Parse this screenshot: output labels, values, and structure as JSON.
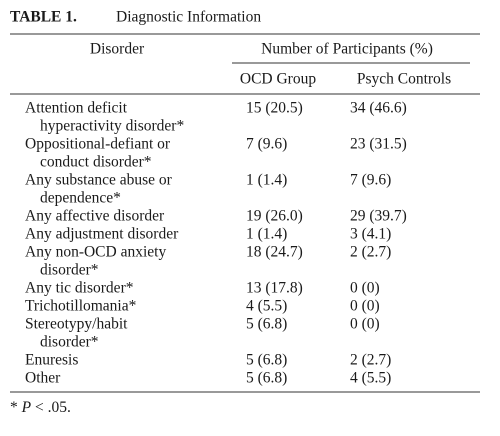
{
  "table": {
    "label": "TABLE 1.",
    "title": "Diagnostic Information",
    "header": {
      "disorder": "Disorder",
      "group": "Number of Participants (%)",
      "columns": [
        "OCD Group",
        "Psych Controls"
      ]
    },
    "rows": [
      {
        "disorder": [
          "Attention deficit",
          "hyperactivity disorder*"
        ],
        "cells": [
          "15 (20.5)",
          "34 (46.6)"
        ]
      },
      {
        "disorder": [
          "Oppositional-defiant or",
          "conduct disorder*"
        ],
        "cells": [
          "7 (9.6)",
          "23 (31.5)"
        ]
      },
      {
        "disorder": [
          "Any substance abuse or",
          "dependence*"
        ],
        "cells": [
          "1 (1.4)",
          "7 (9.6)"
        ]
      },
      {
        "disorder": [
          "Any affective disorder"
        ],
        "cells": [
          "19 (26.0)",
          "29 (39.7)"
        ]
      },
      {
        "disorder": [
          "Any adjustment disorder"
        ],
        "cells": [
          "1 (1.4)",
          "3 (4.1)"
        ]
      },
      {
        "disorder": [
          "Any non-OCD anxiety",
          "disorder*"
        ],
        "cells": [
          "18 (24.7)",
          "2 (2.7)"
        ]
      },
      {
        "disorder": [
          "Any tic disorder*"
        ],
        "cells": [
          "13 (17.8)",
          "0 (0)"
        ]
      },
      {
        "disorder": [
          "Trichotillomania*"
        ],
        "cells": [
          "4 (5.5)",
          "0 (0)"
        ]
      },
      {
        "disorder": [
          "Stereotypy/habit",
          "disorder*"
        ],
        "cells": [
          "5 (6.8)",
          "0 (0)"
        ]
      },
      {
        "disorder": [
          "Enuresis"
        ],
        "cells": [
          "5 (6.8)",
          "2 (2.7)"
        ]
      },
      {
        "disorder": [
          "Other"
        ],
        "cells": [
          "5 (6.8)",
          "4 (5.5)"
        ]
      }
    ],
    "footnote": [
      "*",
      "P",
      "< .05."
    ]
  }
}
